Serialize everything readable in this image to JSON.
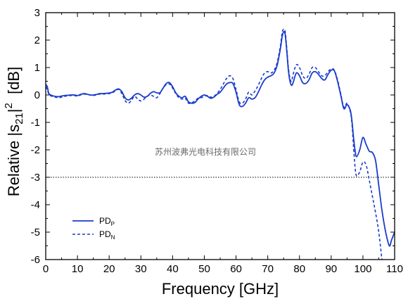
{
  "chart_data": {
    "type": "line",
    "xlabel": "Frequency  [GHz]",
    "ylabel_parts": {
      "pre": "Relative |s",
      "sub": "21",
      "mid": "|",
      "sup": "2",
      "post": "  [dB]"
    },
    "xlim": [
      0,
      110
    ],
    "ylim": [
      -6,
      3
    ],
    "xticks": [
      0,
      10,
      20,
      30,
      40,
      50,
      60,
      70,
      80,
      90,
      100,
      110
    ],
    "yticks": [
      -6,
      -5,
      -4,
      -3,
      -2,
      -1,
      0,
      1,
      2,
      3
    ],
    "reference_line": {
      "y": -3,
      "style": "dotted"
    },
    "watermark": "苏州波弗光电科技有限公司",
    "colors": {
      "series": "#1a3ccc",
      "axis": "#000000"
    },
    "legend": {
      "placement": "lower-left"
    },
    "series": [
      {
        "name": "PDP",
        "legend_main": "PD",
        "legend_sub": "P",
        "style": "solid",
        "x": [
          0,
          0.5,
          1,
          2,
          3,
          4,
          5,
          6,
          7,
          8,
          9,
          10,
          11,
          12,
          13,
          14,
          15,
          16,
          17,
          18,
          19,
          20,
          21,
          22,
          23,
          24,
          25,
          26,
          27,
          28,
          29,
          30,
          31,
          32,
          33,
          34,
          35,
          36,
          37,
          38,
          39,
          40,
          41,
          42,
          43,
          44,
          45,
          46,
          47,
          48,
          49,
          50,
          51,
          52,
          53,
          54,
          55,
          56,
          57,
          58,
          59,
          60,
          61,
          62,
          63,
          64,
          65,
          66,
          67,
          68,
          69,
          70,
          71,
          72,
          73,
          74,
          74.5,
          75,
          75.5,
          76,
          76.5,
          77,
          77.5,
          78,
          79,
          80,
          81,
          82,
          83,
          84,
          85,
          86,
          87,
          88,
          89,
          90,
          91,
          92,
          93,
          94,
          95,
          96,
          96.5,
          97,
          97.5,
          98,
          99,
          100,
          101,
          102,
          103,
          104,
          105,
          106,
          107,
          108,
          108.5,
          109,
          110
        ],
        "y": [
          0.38,
          0.3,
          0.05,
          -0.02,
          -0.05,
          -0.06,
          -0.04,
          -0.02,
          -0.01,
          0.0,
          0.0,
          -0.02,
          0.02,
          0.05,
          0.03,
          0.0,
          0.0,
          0.02,
          0.05,
          0.05,
          0.06,
          0.07,
          0.1,
          0.18,
          0.22,
          0.12,
          -0.1,
          -0.18,
          -0.12,
          0.0,
          0.05,
          0.0,
          -0.08,
          -0.05,
          0.06,
          0.12,
          0.08,
          0.08,
          0.25,
          0.42,
          0.45,
          0.3,
          0.08,
          -0.05,
          -0.1,
          -0.05,
          -0.25,
          -0.3,
          -0.28,
          -0.15,
          -0.05,
          0.0,
          -0.05,
          -0.12,
          -0.08,
          0.02,
          0.1,
          0.25,
          0.4,
          0.45,
          0.42,
          0.1,
          -0.35,
          -0.42,
          -0.3,
          -0.1,
          -0.15,
          -0.1,
          0.1,
          0.35,
          0.55,
          0.65,
          0.7,
          0.8,
          1.1,
          1.7,
          2.1,
          2.3,
          2.2,
          1.6,
          0.9,
          0.5,
          0.35,
          0.45,
          0.8,
          0.7,
          0.45,
          0.42,
          0.55,
          0.8,
          0.85,
          0.75,
          0.6,
          0.55,
          0.75,
          0.9,
          0.88,
          0.5,
          0.0,
          -0.5,
          -0.35,
          -0.55,
          -0.9,
          -1.5,
          -2.0,
          -2.25,
          -2.0,
          -1.55,
          -1.8,
          -2.05,
          -2.1,
          -2.4,
          -3.3,
          -4.2,
          -4.9,
          -5.4,
          -5.5,
          -5.3,
          -5.0
        ]
      },
      {
        "name": "PDN",
        "legend_main": "PD",
        "legend_sub": "N",
        "style": "dashed",
        "x": [
          0,
          0.5,
          1,
          2,
          3,
          4,
          5,
          6,
          7,
          8,
          9,
          10,
          11,
          12,
          13,
          14,
          15,
          16,
          17,
          18,
          19,
          20,
          21,
          22,
          23,
          24,
          25,
          26,
          27,
          28,
          29,
          30,
          31,
          32,
          33,
          34,
          35,
          36,
          37,
          38,
          39,
          40,
          41,
          42,
          43,
          44,
          45,
          46,
          47,
          48,
          49,
          50,
          51,
          52,
          53,
          54,
          55,
          56,
          57,
          58,
          59,
          60,
          61,
          62,
          63,
          64,
          65,
          66,
          67,
          68,
          69,
          70,
          71,
          72,
          73,
          74,
          74.5,
          75,
          75.5,
          76,
          76.5,
          77,
          77.5,
          78,
          79,
          80,
          81,
          82,
          83,
          84,
          85,
          86,
          87,
          88,
          89,
          90,
          91,
          92,
          93,
          94,
          95,
          96,
          96.5,
          97,
          97.5,
          98,
          99,
          100,
          101,
          102,
          103,
          104,
          105,
          106
        ],
        "y": [
          0.3,
          0.2,
          0.02,
          -0.05,
          -0.08,
          -0.1,
          -0.08,
          -0.05,
          -0.03,
          -0.02,
          -0.02,
          -0.04,
          0.0,
          0.03,
          0.02,
          0.0,
          -0.02,
          0.0,
          0.03,
          0.03,
          0.04,
          0.05,
          0.08,
          0.15,
          0.2,
          0.05,
          -0.2,
          -0.3,
          -0.2,
          -0.05,
          -0.15,
          -0.22,
          -0.15,
          -0.05,
          0.0,
          -0.05,
          -0.1,
          0.05,
          0.25,
          0.38,
          0.4,
          0.25,
          0.05,
          -0.1,
          -0.15,
          -0.12,
          -0.3,
          -0.28,
          -0.22,
          -0.12,
          -0.1,
          -0.05,
          -0.02,
          -0.08,
          -0.05,
          0.05,
          0.2,
          0.4,
          0.6,
          0.7,
          0.6,
          0.2,
          -0.25,
          -0.3,
          -0.15,
          0.1,
          0.0,
          0.15,
          0.35,
          0.6,
          0.8,
          0.85,
          0.8,
          0.9,
          1.2,
          1.8,
          2.25,
          2.4,
          2.3,
          1.7,
          1.0,
          0.6,
          0.5,
          0.75,
          1.1,
          1.0,
          0.7,
          0.6,
          0.75,
          1.0,
          1.0,
          0.85,
          0.7,
          0.7,
          0.85,
          0.95,
          0.9,
          0.55,
          0.05,
          -0.45,
          -0.3,
          -0.6,
          -1.0,
          -1.8,
          -2.6,
          -2.95,
          -2.8,
          -2.45,
          -2.55,
          -3.1,
          -3.7,
          -4.3,
          -5.0,
          -6.0
        ]
      }
    ]
  }
}
